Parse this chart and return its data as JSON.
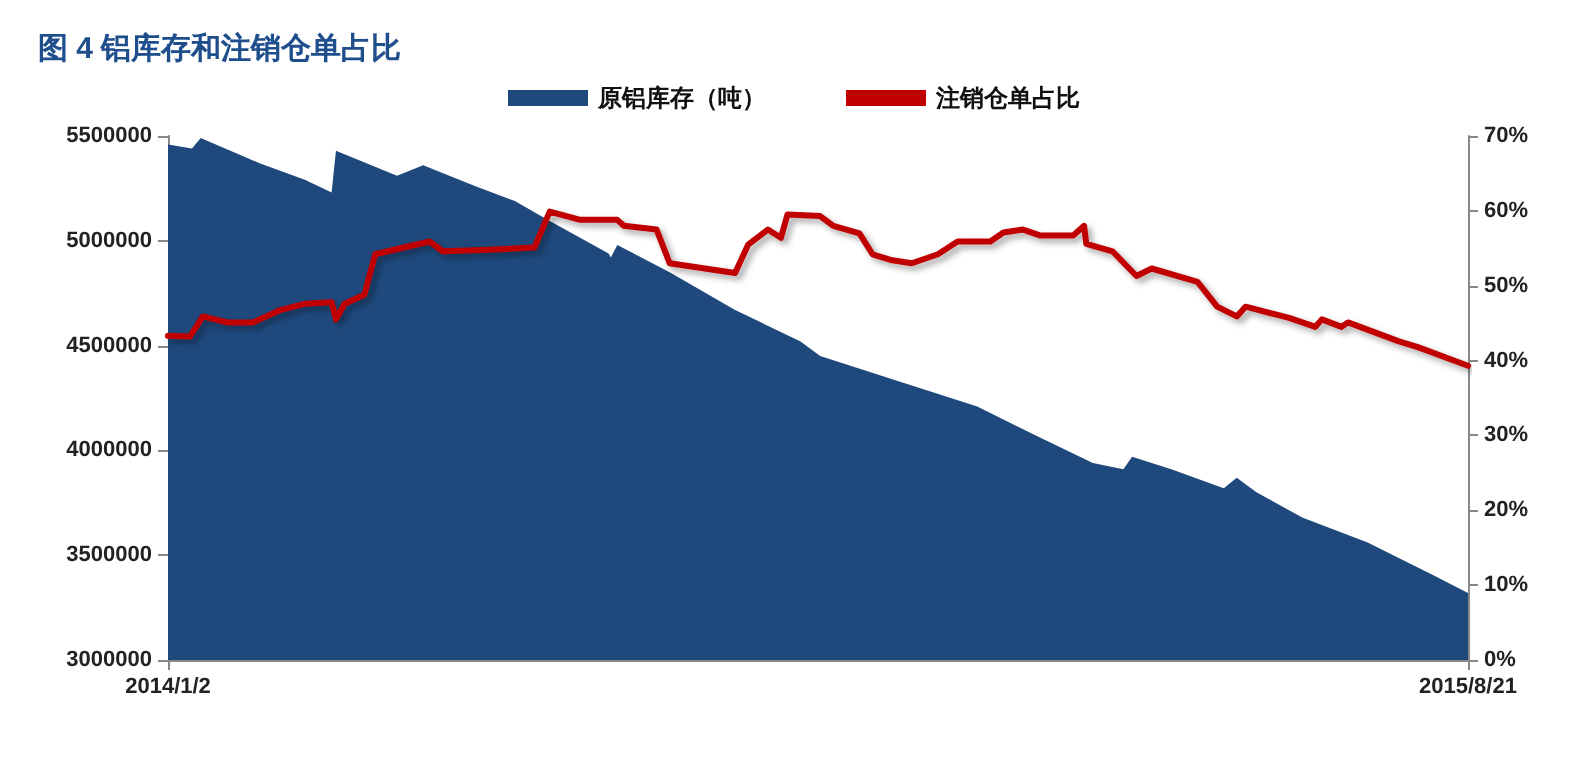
{
  "chart_data": {
    "type": "area",
    "title": "图 4 铝库存和注销仓单占比",
    "xlim": [
      "2014-01-02",
      "2015-08-21"
    ],
    "xticks": [
      {
        "value": "2014-01-02",
        "label": "2014/1/2"
      },
      {
        "value": "2015-08-21",
        "label": "2015/8/21"
      }
    ],
    "ylim": [
      3000000,
      5500000
    ],
    "yticks": [
      3000000,
      3500000,
      4000000,
      4500000,
      5000000,
      5500000
    ],
    "y2lim": [
      0,
      70
    ],
    "y2ticks": [
      {
        "value": 0,
        "label": "0%"
      },
      {
        "value": 10,
        "label": "10%"
      },
      {
        "value": 20,
        "label": "20%"
      },
      {
        "value": 30,
        "label": "30%"
      },
      {
        "value": 40,
        "label": "40%"
      },
      {
        "value": 50,
        "label": "50%"
      },
      {
        "value": 60,
        "label": "60%"
      },
      {
        "value": 70,
        "label": "70%"
      }
    ],
    "grid": false,
    "legend": "top",
    "marker": "none",
    "line_style": "solid",
    "series": [
      {
        "name": "原铝库存（吨）",
        "color": "#1f497d",
        "x": [
          "2014-01-02",
          "2014-01-13",
          "2014-01-17",
          "2014-02-13",
          "2014-03-06",
          "2014-03-18",
          "2014-03-20",
          "2014-04-17",
          "2014-04-29",
          "2014-05-23",
          "2014-06-10",
          "2014-06-25",
          "2014-07-23",
          "2014-07-24",
          "2014-07-27",
          "2014-08-20",
          "2014-09-19",
          "2014-10-19",
          "2014-10-28",
          "2014-12-09",
          "2015-01-08",
          "2015-02-06",
          "2015-03-02",
          "2015-03-16",
          "2015-03-20",
          "2015-04-07",
          "2015-05-01",
          "2015-05-07",
          "2015-05-16",
          "2015-06-06",
          "2015-07-06",
          "2015-08-04",
          "2015-08-21"
        ],
        "values": [
          5460000,
          5440000,
          5490000,
          5370000,
          5290000,
          5230000,
          5430000,
          5310000,
          5360000,
          5260000,
          5190000,
          5100000,
          4940000,
          4920000,
          4980000,
          4850000,
          4670000,
          4520000,
          4450000,
          4310000,
          4210000,
          4060000,
          3940000,
          3910000,
          3970000,
          3910000,
          3820000,
          3870000,
          3800000,
          3680000,
          3560000,
          3410000,
          3320000
        ]
      },
      {
        "name": "注销仓单占比",
        "type": "line",
        "axis": "y2",
        "color": "#c00000",
        "x": [
          "2014-01-02",
          "2014-01-12",
          "2014-01-18",
          "2014-01-29",
          "2014-02-10",
          "2014-02-22",
          "2014-03-06",
          "2014-03-18",
          "2014-03-20",
          "2014-03-24",
          "2014-04-02",
          "2014-04-07",
          "2014-04-23",
          "2014-05-02",
          "2014-05-08",
          "2014-05-29",
          "2014-06-19",
          "2014-06-26",
          "2014-07-10",
          "2014-07-27",
          "2014-07-30",
          "2014-08-14",
          "2014-08-20",
          "2014-09-19",
          "2014-09-25",
          "2014-10-04",
          "2014-10-10",
          "2014-10-13",
          "2014-10-28",
          "2014-11-03",
          "2014-11-15",
          "2014-11-21",
          "2014-11-30",
          "2014-12-09",
          "2014-12-21",
          "2014-12-30",
          "2015-01-14",
          "2015-01-20",
          "2015-01-29",
          "2015-02-06",
          "2015-02-21",
          "2015-02-26",
          "2015-02-27",
          "2015-03-11",
          "2015-03-22",
          "2015-03-29",
          "2015-04-19",
          "2015-04-28",
          "2015-05-07",
          "2015-05-11",
          "2015-05-31",
          "2015-06-12",
          "2015-06-15",
          "2015-06-24",
          "2015-06-27",
          "2015-07-20",
          "2015-07-29",
          "2015-08-21"
        ],
        "values": [
          43.3,
          43.2,
          45.9,
          45.1,
          45.1,
          46.7,
          47.6,
          47.8,
          45.5,
          47.6,
          48.8,
          54.2,
          55.3,
          55.9,
          54.6,
          54.8,
          55.1,
          59.9,
          58.8,
          58.8,
          58.0,
          57.5,
          53.0,
          51.7,
          55.5,
          57.5,
          56.4,
          59.5,
          59.3,
          58.0,
          57.0,
          54.2,
          53.4,
          53.0,
          54.2,
          55.9,
          55.9,
          57.1,
          57.5,
          56.7,
          56.7,
          58.0,
          55.6,
          54.6,
          51.3,
          52.3,
          50.5,
          47.2,
          45.9,
          47.2,
          45.7,
          44.5,
          45.5,
          44.5,
          45.1,
          42.6,
          41.8,
          39.3
        ]
      }
    ]
  }
}
